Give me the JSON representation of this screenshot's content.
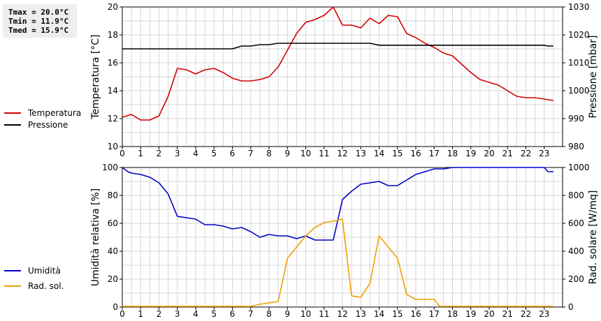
{
  "stats": {
    "tmax": "Tmax = 20.0°C",
    "tmin": "Tmin = 11.9°C",
    "tmed": "Tmed = 15.9°C"
  },
  "legend_top": [
    {
      "label": "Temperatura",
      "color": "#d00000"
    },
    {
      "label": "Pressione",
      "color": "#000000"
    }
  ],
  "legend_bottom": [
    {
      "label": "Umidità",
      "color": "#0000c8"
    },
    {
      "label": "Rad. sol.",
      "color": "#f0a000"
    }
  ],
  "chart_data": [
    {
      "type": "line",
      "x_ticks": [
        "0",
        "1",
        "2",
        "3",
        "4",
        "5",
        "6",
        "7",
        "8",
        "9",
        "10",
        "11",
        "12",
        "13",
        "14",
        "15",
        "16",
        "17",
        "18",
        "19",
        "20",
        "21",
        "22",
        "23"
      ],
      "xlim": [
        0,
        24
      ],
      "grid": true,
      "y_left": {
        "label": "Temperatura [°C]",
        "lim": [
          10,
          20
        ],
        "ticks": [
          "10",
          "12",
          "14",
          "16",
          "18",
          "20"
        ]
      },
      "y_right": {
        "label": "Pressione [mbar]",
        "lim": [
          980,
          1030
        ],
        "ticks": [
          "980",
          "990",
          "1000",
          "1010",
          "1020",
          "1030"
        ]
      },
      "series": [
        {
          "name": "Temperatura",
          "axis": "left",
          "color": "#d00000",
          "points": [
            [
              0,
              12.1
            ],
            [
              0.5,
              12.3
            ],
            [
              1,
              11.9
            ],
            [
              1.5,
              11.9
            ],
            [
              2,
              12.2
            ],
            [
              2.5,
              13.6
            ],
            [
              3,
              15.6
            ],
            [
              3.5,
              15.5
            ],
            [
              4,
              15.2
            ],
            [
              4.5,
              15.5
            ],
            [
              5,
              15.6
            ],
            [
              5.5,
              15.3
            ],
            [
              6,
              14.9
            ],
            [
              6.5,
              14.7
            ],
            [
              7,
              14.7
            ],
            [
              7.5,
              14.8
            ],
            [
              8,
              15.0
            ],
            [
              8.5,
              15.7
            ],
            [
              9,
              16.9
            ],
            [
              9.5,
              18.1
            ],
            [
              10,
              18.9
            ],
            [
              10.5,
              19.1
            ],
            [
              11,
              19.4
            ],
            [
              11.5,
              20.0
            ],
            [
              12,
              18.7
            ],
            [
              12.5,
              18.7
            ],
            [
              13,
              18.5
            ],
            [
              13.5,
              19.2
            ],
            [
              14,
              18.8
            ],
            [
              14.5,
              19.4
            ],
            [
              15,
              19.3
            ],
            [
              15.5,
              18.1
            ],
            [
              16,
              17.8
            ],
            [
              16.5,
              17.4
            ],
            [
              17,
              17.1
            ],
            [
              17.5,
              16.7
            ],
            [
              18,
              16.5
            ],
            [
              18.5,
              15.9
            ],
            [
              19,
              15.3
            ],
            [
              19.5,
              14.8
            ],
            [
              20,
              14.6
            ],
            [
              20.5,
              14.4
            ],
            [
              21,
              14.0
            ],
            [
              21.5,
              13.6
            ],
            [
              22,
              13.5
            ],
            [
              22.5,
              13.5
            ],
            [
              23,
              13.4
            ],
            [
              23.5,
              13.3
            ]
          ]
        },
        {
          "name": "Pressione",
          "axis": "right",
          "color": "#000000",
          "points": [
            [
              0,
              1015
            ],
            [
              1,
              1015
            ],
            [
              2,
              1015
            ],
            [
              3,
              1015
            ],
            [
              4,
              1015
            ],
            [
              5,
              1015
            ],
            [
              6,
              1015
            ],
            [
              6.5,
              1016
            ],
            [
              7,
              1016
            ],
            [
              7.5,
              1016.5
            ],
            [
              8,
              1016.5
            ],
            [
              8.5,
              1017
            ],
            [
              9,
              1017
            ],
            [
              10,
              1017
            ],
            [
              11,
              1017
            ],
            [
              12,
              1017
            ],
            [
              13,
              1017
            ],
            [
              13.5,
              1017
            ],
            [
              14,
              1016.3
            ],
            [
              15,
              1016.3
            ],
            [
              16,
              1016.3
            ],
            [
              17,
              1016.3
            ],
            [
              18,
              1016.3
            ],
            [
              19,
              1016.3
            ],
            [
              20,
              1016.3
            ],
            [
              21,
              1016.3
            ],
            [
              22,
              1016.3
            ],
            [
              23,
              1016.3
            ],
            [
              23.2,
              1016
            ],
            [
              23.5,
              1016
            ]
          ]
        }
      ]
    },
    {
      "type": "line",
      "x_ticks": [
        "0",
        "1",
        "2",
        "3",
        "4",
        "5",
        "6",
        "7",
        "8",
        "9",
        "10",
        "11",
        "12",
        "13",
        "14",
        "15",
        "16",
        "17",
        "18",
        "19",
        "20",
        "21",
        "22",
        "23"
      ],
      "xlim": [
        0,
        24
      ],
      "grid": true,
      "y_left": {
        "label": "Umidità relativa [%]",
        "lim": [
          0,
          100
        ],
        "ticks": [
          "0",
          "20",
          "40",
          "60",
          "80",
          "100"
        ]
      },
      "y_right": {
        "label": "Rad. solare [W/mq]",
        "lim": [
          0,
          1000
        ],
        "ticks": [
          "0",
          "200",
          "400",
          "600",
          "800",
          "1000"
        ]
      },
      "series": [
        {
          "name": "Umidità",
          "axis": "left",
          "color": "#0000c8",
          "points": [
            [
              0,
              100
            ],
            [
              0.3,
              97
            ],
            [
              0.5,
              96
            ],
            [
              1,
              95
            ],
            [
              1.5,
              93
            ],
            [
              2,
              89
            ],
            [
              2.5,
              81
            ],
            [
              3,
              65
            ],
            [
              3.5,
              64
            ],
            [
              4,
              63
            ],
            [
              4.5,
              59
            ],
            [
              5,
              59
            ],
            [
              5.5,
              58
            ],
            [
              6,
              56
            ],
            [
              6.5,
              57
            ],
            [
              7,
              54
            ],
            [
              7.5,
              50
            ],
            [
              8,
              52
            ],
            [
              8.5,
              51
            ],
            [
              9,
              51
            ],
            [
              9.5,
              49
            ],
            [
              10,
              51
            ],
            [
              10.5,
              48
            ],
            [
              11,
              48
            ],
            [
              11.5,
              48
            ],
            [
              12,
              77
            ],
            [
              12.5,
              83
            ],
            [
              13,
              88
            ],
            [
              13.5,
              89
            ],
            [
              14,
              90
            ],
            [
              14.5,
              87
            ],
            [
              15,
              87
            ],
            [
              15.5,
              91
            ],
            [
              16,
              95
            ],
            [
              16.5,
              97
            ],
            [
              17,
              99
            ],
            [
              17.5,
              99
            ],
            [
              18,
              100
            ],
            [
              19,
              100
            ],
            [
              20,
              100
            ],
            [
              21,
              100
            ],
            [
              22,
              100
            ],
            [
              23,
              100
            ],
            [
              23.2,
              97
            ],
            [
              23.5,
              97
            ]
          ]
        },
        {
          "name": "Rad. sol.",
          "axis": "right",
          "color": "#f0a000",
          "points": [
            [
              0,
              5
            ],
            [
              1,
              5
            ],
            [
              2,
              5
            ],
            [
              3,
              5
            ],
            [
              4,
              5
            ],
            [
              5,
              5
            ],
            [
              6,
              5
            ],
            [
              7,
              5
            ],
            [
              7.5,
              20
            ],
            [
              8,
              30
            ],
            [
              8.5,
              40
            ],
            [
              9,
              350
            ],
            [
              9.5,
              430
            ],
            [
              10,
              510
            ],
            [
              10.5,
              570
            ],
            [
              11,
              605
            ],
            [
              11.5,
              615
            ],
            [
              12,
              630
            ],
            [
              12.5,
              80
            ],
            [
              13,
              70
            ],
            [
              13.5,
              170
            ],
            [
              14,
              510
            ],
            [
              14.5,
              430
            ],
            [
              15,
              350
            ],
            [
              15.5,
              90
            ],
            [
              16,
              55
            ],
            [
              16.5,
              55
            ],
            [
              17,
              55
            ],
            [
              17.3,
              5
            ],
            [
              18,
              5
            ],
            [
              19,
              5
            ],
            [
              20,
              5
            ],
            [
              21,
              5
            ],
            [
              22,
              5
            ],
            [
              23,
              5
            ],
            [
              23.5,
              5
            ]
          ]
        }
      ]
    }
  ]
}
